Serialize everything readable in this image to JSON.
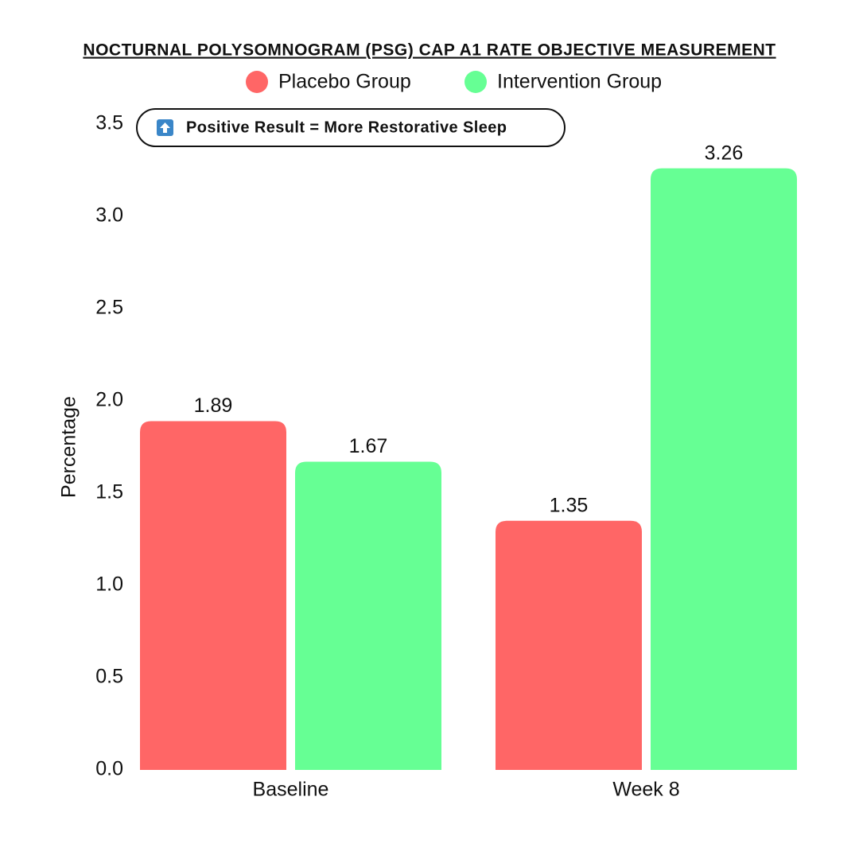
{
  "chart_data": {
    "type": "bar",
    "title": "NOCTURNAL POLYSOMNOGRAM (PSG) CAP A1 RATE OBJECTIVE MEASUREMENT",
    "annotation": "Positive Result = More Restorative Sleep",
    "y_label": "Percentage",
    "categories": [
      "Baseline",
      "Week 8"
    ],
    "series": [
      {
        "name": "Placebo Group",
        "color": "#ff6666",
        "values": [
          1.89,
          1.35
        ]
      },
      {
        "name": "Intervention Group",
        "color": "#66ff94",
        "values": [
          1.67,
          3.26
        ]
      }
    ],
    "ylim": [
      0,
      3.5
    ],
    "yticks": [
      {
        "value": 0,
        "label": "0.0"
      },
      0.5,
      {
        "value": 1,
        "label": "1.0"
      },
      1.5,
      {
        "value": 2,
        "label": "2.0"
      },
      2.5,
      {
        "value": 3,
        "label": "3.0"
      },
      3.5
    ],
    "grid": false
  }
}
